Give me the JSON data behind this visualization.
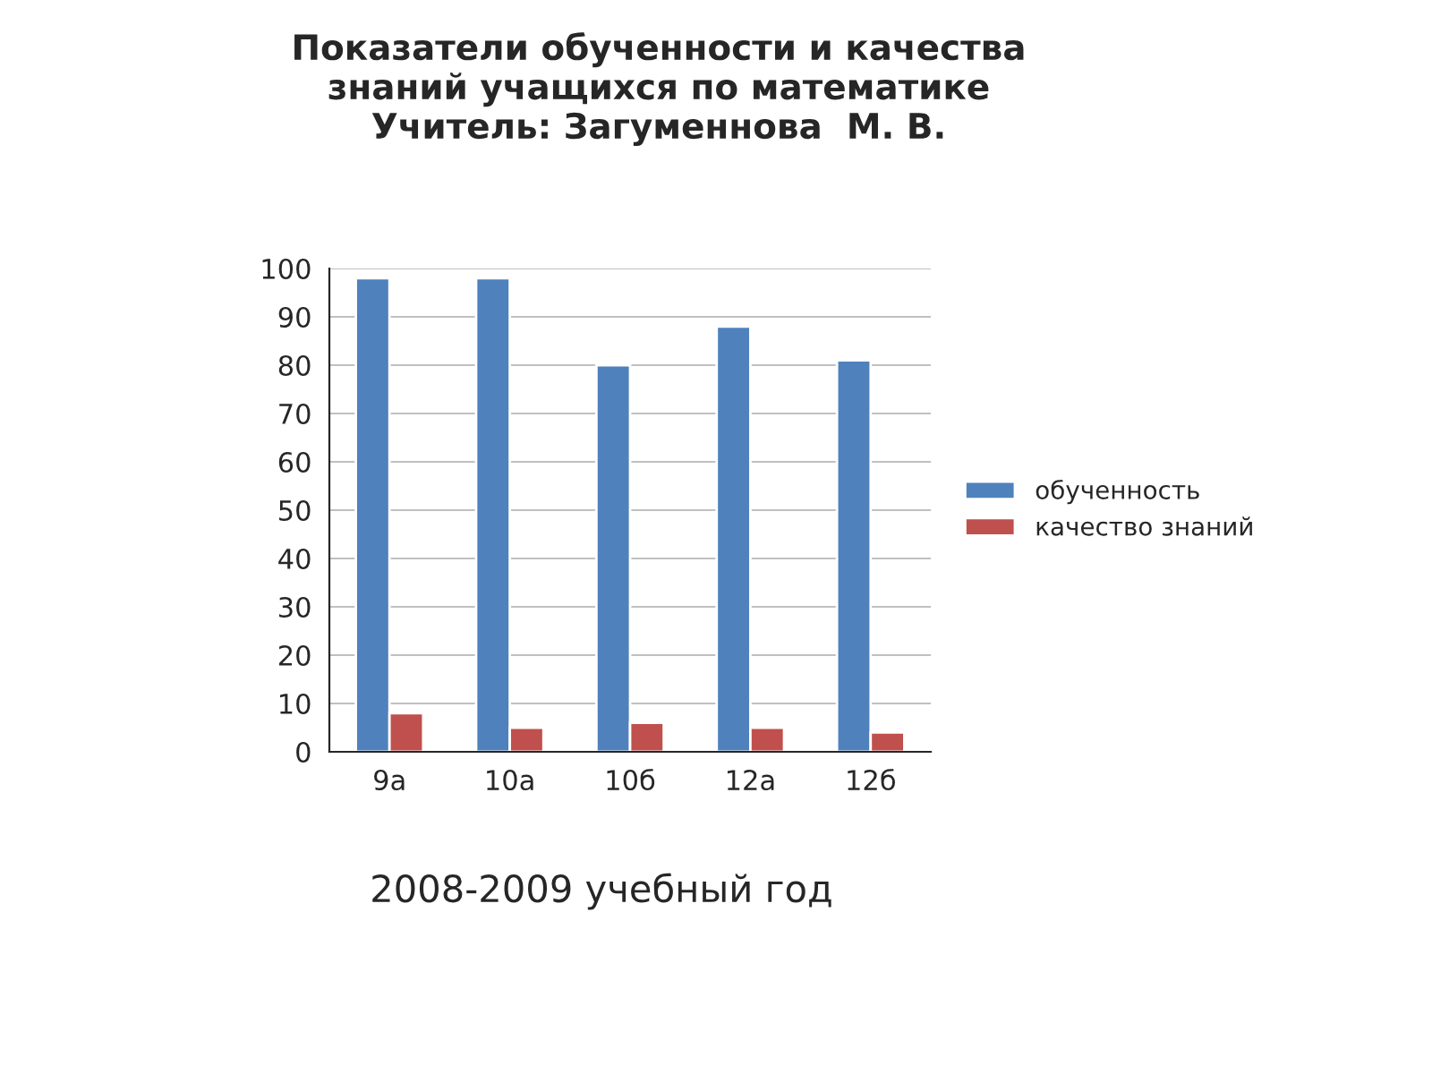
{
  "chart_data": {
    "type": "bar",
    "title": "Показатели обученности и качества\nзнаний учащихся по математике\nУчитель: Загуменнова  М. В.",
    "categories": [
      "9а",
      "10а",
      "10б",
      "12а",
      "12б"
    ],
    "series": [
      {
        "name": "обученность",
        "color": "#4f81bd",
        "values": [
          98,
          98,
          80,
          88,
          81
        ]
      },
      {
        "name": "качество знаний",
        "color": "#c0504d",
        "values": [
          8,
          5,
          6,
          5,
          4
        ]
      }
    ],
    "ylim": [
      0,
      100
    ],
    "yticks": [
      0,
      10,
      20,
      30,
      40,
      50,
      60,
      70,
      80,
      90,
      100
    ],
    "grid": "y",
    "legend": "right",
    "annotations": [
      "2008-2009 учебный год"
    ]
  }
}
